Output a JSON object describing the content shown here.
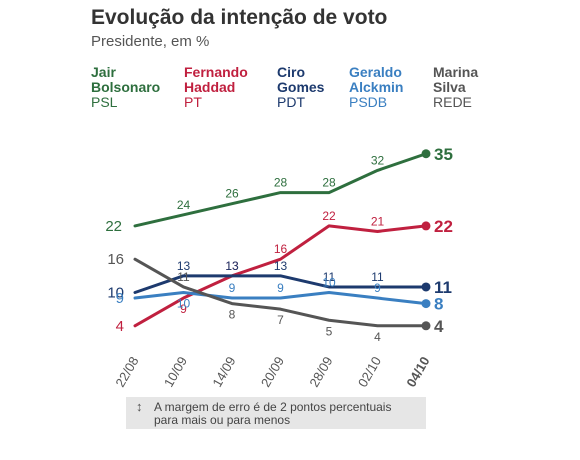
{
  "title": "Evolução da intenção de voto",
  "subtitle": "Presidente, em %",
  "legend": [
    {
      "name": "Jair\nBolsonaro",
      "party": "PSL",
      "color": "#2e6f3e"
    },
    {
      "name": "Fernando\nHaddad",
      "party": "PT",
      "color": "#c0203f"
    },
    {
      "name": "Ciro\nGomes",
      "party": "PDT",
      "color": "#1d3a6e"
    },
    {
      "name": "Geraldo\nAlckmin",
      "party": "PSDB",
      "color": "#3a7fc1"
    },
    {
      "name": "Marina\nSilva",
      "party": "REDE",
      "color": "#555555"
    }
  ],
  "note": {
    "arrow": "↕",
    "text": "A margem de erro é de 2 pontos percentuais\npara mais ou para menos"
  },
  "chart_data": {
    "type": "line",
    "title": "Evolução da intenção de voto",
    "subtitle": "Presidente, em %",
    "x": [
      "22/08",
      "10/09",
      "14/09",
      "20/09",
      "28/09",
      "02/10",
      "04/10"
    ],
    "ylim": [
      0,
      40
    ],
    "grid": false,
    "legend_position": "top",
    "series": [
      {
        "name": "Jair Bolsonaro",
        "party": "PSL",
        "color": "#2e6f3e",
        "values": [
          22,
          24,
          26,
          28,
          28,
          32,
          35
        ]
      },
      {
        "name": "Fernando Haddad",
        "party": "PT",
        "color": "#c0203f",
        "values": [
          4,
          9,
          13,
          16,
          22,
          21,
          22
        ]
      },
      {
        "name": "Ciro Gomes",
        "party": "PDT",
        "color": "#1d3a6e",
        "values": [
          10,
          13,
          13,
          13,
          11,
          11,
          11
        ]
      },
      {
        "name": "Geraldo Alckmin",
        "party": "PSDB",
        "color": "#3a7fc1",
        "values": [
          9,
          10,
          9,
          9,
          10,
          9,
          8
        ]
      },
      {
        "name": "Marina Silva",
        "party": "REDE",
        "color": "#555555",
        "values": [
          16,
          11,
          8,
          7,
          5,
          4,
          4
        ]
      }
    ]
  }
}
